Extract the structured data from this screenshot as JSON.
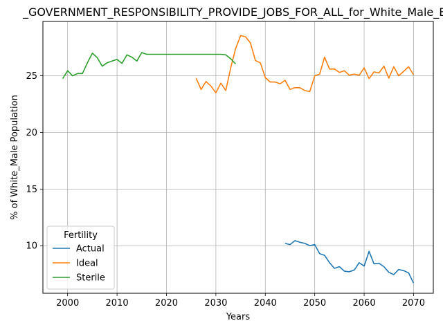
{
  "chart_data": {
    "type": "line",
    "title": "_GOVERNMENT_RESPONSIBILITY_PROVIDE_JOBS_FOR_ALL_for_White_Male_Be",
    "xlabel": "Years",
    "ylabel": "% of White_Male Population",
    "xlim": [
      1995,
      2074
    ],
    "ylim": [
      5.8,
      29.8
    ],
    "xticks": [
      2000,
      2010,
      2020,
      2030,
      2040,
      2050,
      2060,
      2070
    ],
    "yticks": [
      10,
      15,
      20,
      25
    ],
    "grid": true,
    "legend": {
      "title": "Fertility",
      "placement": "lower-left"
    },
    "series": [
      {
        "name": "Actual",
        "color": "#1f77b4",
        "x": [
          2044,
          2045,
          2046,
          2047,
          2048,
          2049,
          2050,
          2051,
          2052,
          2053,
          2054,
          2055,
          2056,
          2057,
          2058,
          2059,
          2060,
          2061,
          2062,
          2063,
          2064,
          2065,
          2066,
          2067,
          2068,
          2069,
          2070
        ],
        "y": [
          10.2,
          10.1,
          10.45,
          10.3,
          10.2,
          10.0,
          10.1,
          9.3,
          9.15,
          8.5,
          8.0,
          8.15,
          7.75,
          7.7,
          7.85,
          8.5,
          8.2,
          9.5,
          8.4,
          8.45,
          8.15,
          7.65,
          7.45,
          7.9,
          7.8,
          7.6,
          6.7
        ]
      },
      {
        "name": "Ideal",
        "color": "#ff7f0e",
        "x": [
          2026,
          2027,
          2028,
          2029,
          2030,
          2031,
          2032,
          2033,
          2034,
          2035,
          2036,
          2037,
          2038,
          2039,
          2040,
          2041,
          2042,
          2043,
          2044,
          2045,
          2046,
          2047,
          2048,
          2049,
          2050,
          2051,
          2052,
          2053,
          2054,
          2055,
          2056,
          2057,
          2058,
          2059,
          2060,
          2061,
          2062,
          2063,
          2064,
          2065,
          2066,
          2067,
          2068,
          2069,
          2070
        ],
        "y": [
          24.8,
          23.8,
          24.5,
          24.1,
          23.5,
          24.35,
          23.7,
          25.7,
          27.4,
          28.55,
          28.45,
          27.9,
          26.35,
          26.15,
          24.85,
          24.45,
          24.45,
          24.3,
          24.6,
          23.8,
          23.95,
          23.95,
          23.7,
          23.6,
          25.0,
          25.15,
          26.65,
          25.6,
          25.6,
          25.3,
          25.45,
          25.05,
          25.15,
          25.05,
          25.7,
          24.75,
          25.35,
          25.25,
          25.85,
          24.8,
          25.8,
          25.0,
          25.4,
          25.8,
          25.1
        ]
      },
      {
        "name": "Sterile",
        "color": "#2ca02c",
        "x": [
          1999,
          2000,
          2001,
          2002,
          2003,
          2004,
          2005,
          2006,
          2007,
          2008,
          2009,
          2010,
          2011,
          2012,
          2013,
          2014,
          2015,
          2016,
          2017,
          2018,
          2019,
          2020,
          2021,
          2022,
          2023,
          2024,
          2025,
          2026,
          2027,
          2028,
          2029,
          2030,
          2031,
          2032,
          2033,
          2034
        ],
        "y": [
          24.75,
          25.45,
          25.0,
          25.2,
          25.2,
          26.15,
          27.0,
          26.6,
          25.85,
          26.15,
          26.3,
          26.45,
          26.1,
          26.85,
          26.65,
          26.3,
          27.05,
          26.9,
          26.9,
          26.9,
          26.9,
          26.9,
          26.9,
          26.9,
          26.9,
          26.9,
          26.9,
          26.9,
          26.9,
          26.9,
          26.9,
          26.9,
          26.9,
          26.85,
          26.5,
          26.05
        ]
      }
    ]
  }
}
